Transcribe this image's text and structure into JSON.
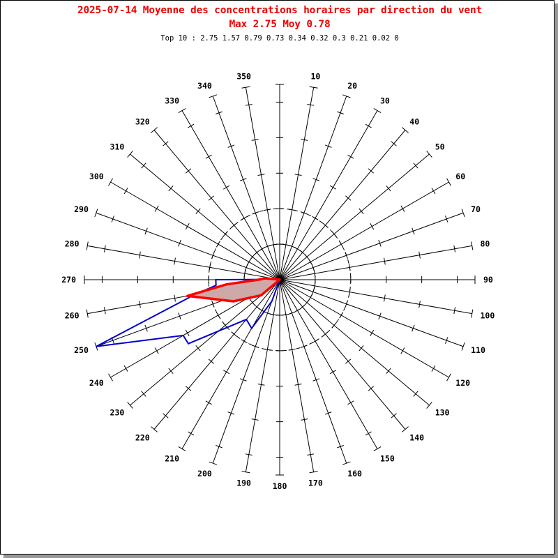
{
  "chart_data": {
    "type": "polar-line",
    "date": "2025-07-14",
    "title": "2025-07-14 Moyenne des concentrations horaires par direction du vent",
    "subtitle": "Max 2.75 Moy 0.78",
    "top10_label": "Top 10 : 2.75 1.57 0.79 0.73 0.34 0.32 0.3 0.21 0.02 0",
    "max": 2.75,
    "mean": 0.78,
    "top10": [
      2.75,
      1.57,
      0.79,
      0.73,
      0.34,
      0.32,
      0.3,
      0.21,
      0.02,
      0
    ],
    "direction_labels": [
      "350",
      "10",
      "20",
      "30",
      "40",
      "50",
      "60",
      "70",
      "80",
      "90",
      "100",
      "110",
      "120",
      "130",
      "140",
      "150",
      "160",
      "170",
      "180",
      "190",
      "200",
      "210",
      "220",
      "230",
      "240",
      "250",
      "260",
      "270",
      "280",
      "290",
      "300",
      "310",
      "320",
      "330",
      "340"
    ],
    "series": [
      {
        "color": "#0000cc",
        "points": [
          {
            "dir": 180,
            "value": 0.0
          },
          {
            "dir": 200,
            "value": 0.32
          },
          {
            "dir": 210,
            "value": 0.79
          },
          {
            "dir": 220,
            "value": 0.73
          },
          {
            "dir": 235,
            "value": 1.57
          },
          {
            "dir": 240,
            "value": 1.57
          },
          {
            "dir": 250,
            "value": 2.75
          },
          {
            "dir": 260,
            "value": 1.22
          },
          {
            "dir": 265,
            "value": 0.9
          },
          {
            "dir": 270,
            "value": 0.9
          },
          {
            "dir": 280,
            "value": 0.02
          },
          {
            "dir": 290,
            "value": 0.0
          },
          {
            "dir": 360,
            "value": 0.0
          }
        ]
      },
      {
        "color": "#ff0000",
        "fill": "#cfa8a8",
        "points": [
          {
            "dir": 180,
            "value": 0.0
          },
          {
            "dir": 230,
            "value": 0.34
          },
          {
            "dir": 245,
            "value": 0.72
          },
          {
            "dir": 260,
            "value": 1.32
          },
          {
            "dir": 265,
            "value": 0.75
          },
          {
            "dir": 270,
            "value": 0.3
          },
          {
            "dir": 275,
            "value": 0.21
          },
          {
            "dir": 280,
            "value": 0.02
          },
          {
            "dir": 360,
            "value": 0.0
          }
        ]
      }
    ],
    "grid": {
      "dashed_circles": [
        0.5,
        1.0
      ],
      "radial_max": 2.75,
      "tick_step": 0.5
    }
  }
}
